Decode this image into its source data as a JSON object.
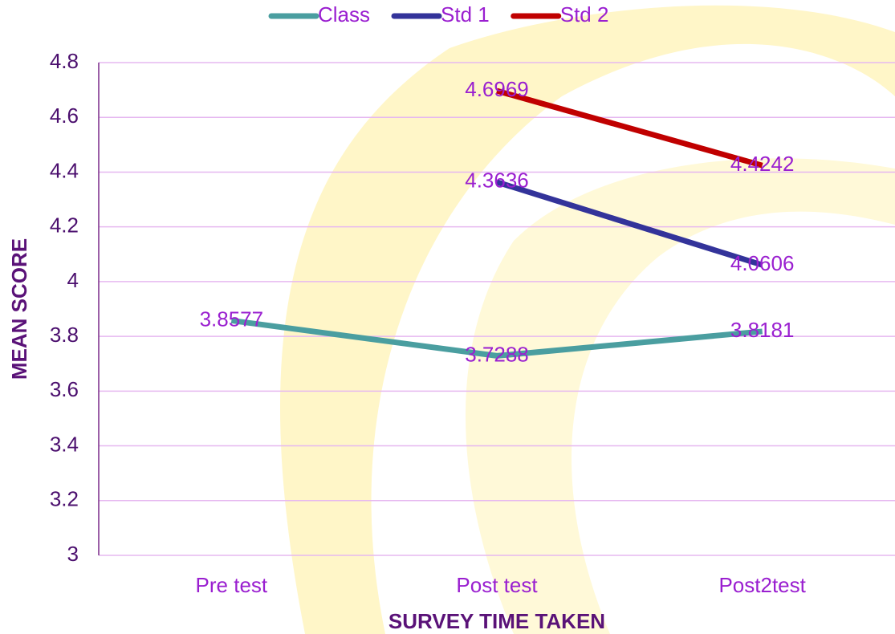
{
  "chart_data": {
    "type": "line",
    "x_label": "SURVEY TIME TAKEN",
    "y_label": "MEAN SCORE",
    "categories": [
      "Pre test",
      "Post test",
      "Post2test"
    ],
    "series": [
      {
        "name": "Class",
        "color": "#4a9ea0",
        "values": [
          3.8577,
          3.7288,
          3.8181
        ]
      },
      {
        "name": "Std 1",
        "color": "#33339a",
        "values": [
          null,
          4.3636,
          4.0606
        ]
      },
      {
        "name": "Std 2",
        "color": "#c00000",
        "values": [
          null,
          4.6969,
          4.4242
        ]
      }
    ],
    "ylim": [
      3,
      4.8
    ],
    "yticks": [
      3,
      3.2,
      3.4,
      3.6,
      3.8,
      4,
      4.2,
      4.4,
      4.6,
      4.8
    ],
    "grid": true,
    "legend": "top"
  }
}
